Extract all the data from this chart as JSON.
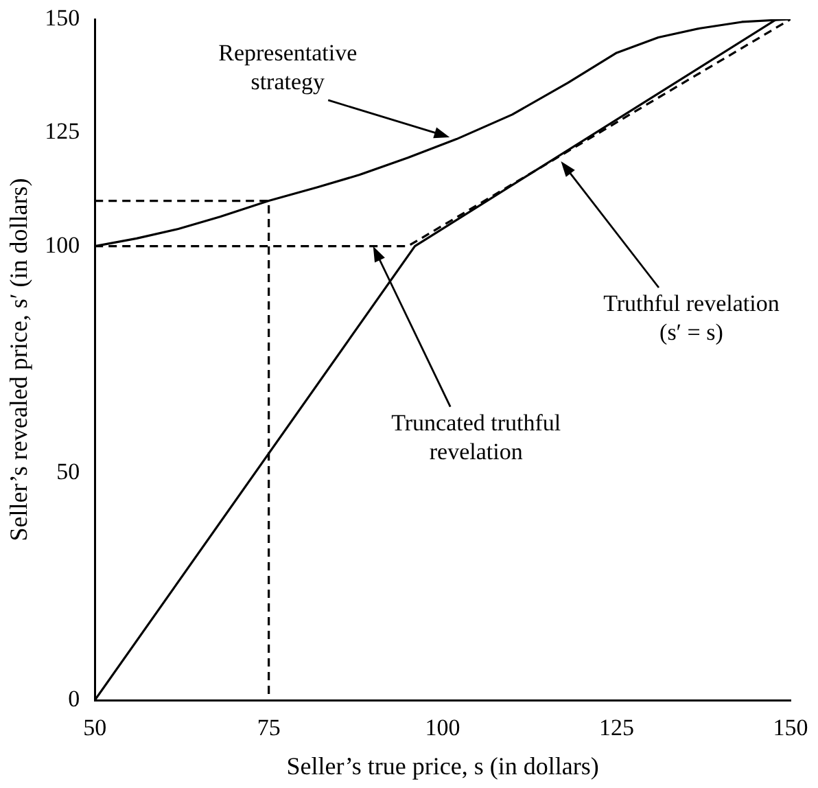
{
  "chart_data": {
    "type": "line",
    "xlabel": "Seller’s true price, s (in dollars)",
    "ylabel": "Seller’s revealed price, s′ (in dollars)",
    "xlim": [
      50,
      150
    ],
    "xticks": [
      50,
      75,
      100,
      125,
      150
    ],
    "ylim": [
      0,
      150
    ],
    "yticks": [
      0,
      50,
      100,
      125,
      150
    ],
    "grid": false,
    "legend": false,
    "marker": "none",
    "series": [
      {
        "color": "#000000",
        "line_style": "solid",
        "x": [
          50,
          56,
          62,
          68,
          75,
          82,
          88,
          95,
          102,
          110,
          118,
          125,
          131,
          137,
          143,
          150
        ],
        "values": [
          100,
          101.7,
          103.8,
          106.5,
          110,
          113,
          115.7,
          119.5,
          123.6,
          129,
          136,
          142.6,
          146,
          148,
          149.4,
          150
        ]
      },
      {
        "color": "#000000",
        "line_style": "solid",
        "x": [
          50,
          96,
          148
        ],
        "values": [
          0,
          100,
          150
        ]
      },
      {
        "color": "#000000",
        "line_style": "dashed",
        "x": [
          50,
          95,
          150
        ],
        "values": [
          100,
          100,
          150
        ]
      },
      {
        "color": "#000000",
        "line_style": "dashed",
        "x": [
          50,
          75,
          75
        ],
        "values": [
          110,
          110,
          0
        ]
      }
    ],
    "annotations": [
      {
        "text": "Representative strategy",
        "x": 101,
        "y": 124
      },
      {
        "text": "Truthful revelation (s′ = s)",
        "x": 117,
        "y": 118.7
      },
      {
        "text": "Truncated truthful revelation",
        "x": 90,
        "y": 100
      }
    ]
  }
}
